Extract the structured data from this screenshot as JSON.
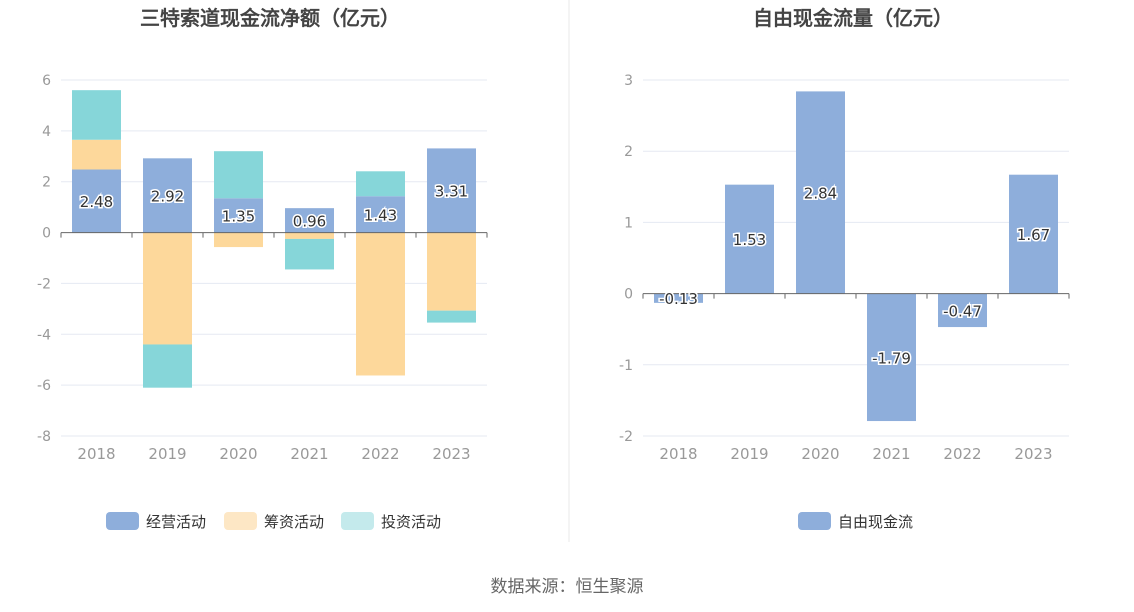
{
  "colors": {
    "operating": "#8eaedb",
    "financing": "#fdd89b",
    "investing": "#86d6d9",
    "free_cf": "#8eaedb",
    "legend_financing": "#fde7c5",
    "legend_investing": "#c4eaec",
    "grid": "#e5e9f2",
    "axis": "#666666",
    "tick_text": "#999999",
    "title_text": "#444444"
  },
  "chart_data": [
    {
      "type": "bar",
      "stacked": true,
      "title": "三特索道现金流净额（亿元）",
      "categories": [
        "2018",
        "2019",
        "2020",
        "2021",
        "2022",
        "2023"
      ],
      "ylim": [
        -8,
        6
      ],
      "yticks": [
        6,
        4,
        2,
        0,
        -2,
        -4,
        -6,
        -8
      ],
      "grid": true,
      "legend_position": "bottom",
      "series": [
        {
          "name": "经营活动",
          "values": [
            2.48,
            2.92,
            1.35,
            0.96,
            1.43,
            3.31
          ],
          "show_labels": true
        },
        {
          "name": "筹资活动",
          "values": [
            1.17,
            -4.4,
            -0.57,
            -0.25,
            -5.62,
            -3.07
          ],
          "show_labels": false
        },
        {
          "name": "投资活动",
          "values": [
            1.95,
            -1.7,
            1.85,
            -1.2,
            0.98,
            -0.47
          ],
          "show_labels": false
        }
      ]
    },
    {
      "type": "bar",
      "title": "自由现金流量（亿元）",
      "categories": [
        "2018",
        "2019",
        "2020",
        "2021",
        "2022",
        "2023"
      ],
      "ylim": [
        -2,
        3
      ],
      "yticks": [
        3,
        2,
        1,
        0,
        -1,
        -2
      ],
      "grid": true,
      "legend_position": "bottom",
      "series": [
        {
          "name": "自由现金流",
          "values": [
            -0.13,
            1.53,
            2.84,
            -1.79,
            -0.47,
            1.67
          ],
          "show_labels": true
        }
      ]
    }
  ],
  "source_text": "数据来源：恒生聚源"
}
